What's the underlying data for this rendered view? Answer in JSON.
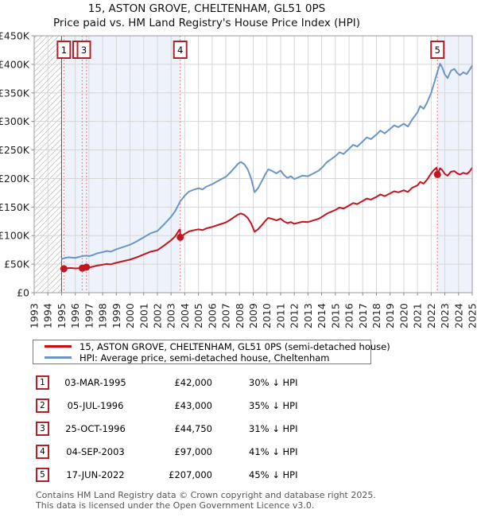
{
  "title_line1": "15, ASTON GROVE, CHELTENHAM, GL51 0PS",
  "title_line2": "Price paid vs. HM Land Registry's House Price Index (HPI)",
  "legend": [
    {
      "label": "15, ASTON GROVE, CHELTENHAM, GL51 0PS (semi-detached house)",
      "color": "#cc0a14"
    },
    {
      "label": "HPI: Average price, semi-detached house, Cheltenham",
      "color": "#6b95c8"
    }
  ],
  "colors": {
    "property_line": "#c41420",
    "hpi_line": "#6b95c8",
    "sale_dot": "#c41420",
    "sale_dotted_line": "#ee6e6e",
    "marker_box_border": "#b22028",
    "shaded_region": "#eef2fa",
    "grid": "#d6d6d6",
    "plot_border": "#9a9a9a",
    "hatch_line": "#c6c6c6",
    "hpi_start_line": "#555555",
    "tick": "#888888",
    "axis_text": "#222222"
  },
  "chart_data": {
    "type": "line",
    "title": "15, ASTON GROVE, CHELTENHAM, GL51 0PS — Price paid vs. HM Land Registry's House Price Index (HPI)",
    "xlabel": "",
    "ylabel": "",
    "x_range": [
      1993,
      2025
    ],
    "y_range": [
      0,
      450000
    ],
    "y_ticks": [
      {
        "value": 0,
        "label": "£0"
      },
      {
        "value": 50000,
        "label": "£50K"
      },
      {
        "value": 100000,
        "label": "£100K"
      },
      {
        "value": 150000,
        "label": "£150K"
      },
      {
        "value": 200000,
        "label": "£200K"
      },
      {
        "value": 250000,
        "label": "£250K"
      },
      {
        "value": 300000,
        "label": "£300K"
      },
      {
        "value": 350000,
        "label": "£350K"
      },
      {
        "value": 400000,
        "label": "£400K"
      },
      {
        "value": 450000,
        "label": "£450K"
      }
    ],
    "x_ticks": [
      1993,
      1994,
      1995,
      1996,
      1997,
      1998,
      1999,
      2000,
      2001,
      2002,
      2003,
      2004,
      2005,
      2006,
      2007,
      2008,
      2009,
      2010,
      2011,
      2012,
      2013,
      2014,
      2015,
      2016,
      2017,
      2018,
      2019,
      2020,
      2021,
      2022,
      2023,
      2024,
      2025
    ],
    "grid": true,
    "legend_position": "below",
    "hatch_region": {
      "from": 1993,
      "to": 1995.0,
      "meaning": "no HPI data before 1995"
    },
    "shaded_regions": [
      {
        "from": 1995.17,
        "to": 2003.67
      },
      {
        "from": 2022.46,
        "to": 2025
      }
    ],
    "series": [
      {
        "name": "HPI: Average price, semi-detached house, Cheltenham",
        "color": "#6b95c8",
        "points": [
          [
            1995.0,
            59000
          ],
          [
            1995.25,
            61000
          ],
          [
            1995.5,
            62000
          ],
          [
            1995.75,
            61500
          ],
          [
            1996.0,
            61000
          ],
          [
            1996.25,
            62500
          ],
          [
            1996.5,
            64000
          ],
          [
            1996.81,
            65000
          ],
          [
            1997.0,
            64000
          ],
          [
            1997.3,
            66000
          ],
          [
            1997.6,
            69000
          ],
          [
            1998.0,
            71000
          ],
          [
            1998.3,
            73000
          ],
          [
            1998.6,
            72000
          ],
          [
            1999.0,
            76000
          ],
          [
            1999.5,
            80000
          ],
          [
            2000.0,
            84000
          ],
          [
            2000.5,
            90000
          ],
          [
            2001.0,
            97000
          ],
          [
            2001.5,
            104000
          ],
          [
            2002.0,
            108000
          ],
          [
            2002.5,
            120000
          ],
          [
            2003.0,
            133000
          ],
          [
            2003.3,
            143000
          ],
          [
            2003.67,
            160000
          ],
          [
            2004.0,
            170000
          ],
          [
            2004.3,
            177000
          ],
          [
            2004.6,
            180000
          ],
          [
            2005.0,
            183000
          ],
          [
            2005.3,
            181000
          ],
          [
            2005.6,
            186000
          ],
          [
            2006.0,
            190000
          ],
          [
            2006.3,
            194000
          ],
          [
            2006.6,
            198000
          ],
          [
            2007.0,
            203000
          ],
          [
            2007.3,
            210000
          ],
          [
            2007.6,
            218000
          ],
          [
            2007.9,
            226000
          ],
          [
            2008.1,
            229000
          ],
          [
            2008.35,
            225000
          ],
          [
            2008.6,
            216000
          ],
          [
            2008.85,
            200000
          ],
          [
            2009.1,
            176000
          ],
          [
            2009.35,
            183000
          ],
          [
            2009.6,
            194000
          ],
          [
            2009.85,
            206000
          ],
          [
            2010.1,
            216000
          ],
          [
            2010.4,
            213000
          ],
          [
            2010.7,
            209000
          ],
          [
            2011.0,
            214000
          ],
          [
            2011.25,
            206000
          ],
          [
            2011.5,
            201000
          ],
          [
            2011.75,
            204000
          ],
          [
            2012.0,
            199000
          ],
          [
            2012.3,
            202000
          ],
          [
            2012.6,
            205000
          ],
          [
            2013.0,
            204000
          ],
          [
            2013.4,
            209000
          ],
          [
            2013.8,
            214000
          ],
          [
            2014.1,
            221000
          ],
          [
            2014.4,
            229000
          ],
          [
            2014.7,
            234000
          ],
          [
            2015.0,
            239000
          ],
          [
            2015.3,
            246000
          ],
          [
            2015.6,
            243000
          ],
          [
            2016.0,
            252000
          ],
          [
            2016.3,
            259000
          ],
          [
            2016.6,
            256000
          ],
          [
            2017.0,
            265000
          ],
          [
            2017.3,
            272000
          ],
          [
            2017.6,
            269000
          ],
          [
            2018.0,
            277000
          ],
          [
            2018.3,
            284000
          ],
          [
            2018.6,
            279000
          ],
          [
            2019.0,
            287000
          ],
          [
            2019.3,
            293000
          ],
          [
            2019.6,
            290000
          ],
          [
            2020.0,
            296000
          ],
          [
            2020.3,
            291000
          ],
          [
            2020.6,
            303000
          ],
          [
            2021.0,
            316000
          ],
          [
            2021.2,
            327000
          ],
          [
            2021.45,
            322000
          ],
          [
            2021.7,
            333000
          ],
          [
            2022.0,
            350000
          ],
          [
            2022.2,
            366000
          ],
          [
            2022.46,
            387000
          ],
          [
            2022.65,
            401000
          ],
          [
            2022.8,
            395000
          ],
          [
            2023.0,
            382000
          ],
          [
            2023.2,
            376000
          ],
          [
            2023.45,
            389000
          ],
          [
            2023.7,
            392000
          ],
          [
            2023.9,
            385000
          ],
          [
            2024.1,
            381000
          ],
          [
            2024.35,
            386000
          ],
          [
            2024.6,
            383000
          ],
          [
            2024.8,
            390000
          ],
          [
            2025.0,
            398000
          ]
        ]
      },
      {
        "name": "15, ASTON GROVE, CHELTENHAM, GL51 0PS (semi-detached house)",
        "color": "#c41420",
        "points": [
          [
            1995.17,
            42000
          ],
          [
            1995.4,
            42800
          ],
          [
            1995.6,
            43400
          ],
          [
            1995.8,
            43000
          ],
          [
            1996.0,
            42500
          ],
          [
            1996.25,
            42900
          ],
          [
            1996.51,
            43000
          ],
          [
            1996.82,
            44750
          ],
          [
            1997.0,
            44200
          ],
          [
            1997.3,
            45600
          ],
          [
            1997.6,
            47600
          ],
          [
            1998.0,
            49000
          ],
          [
            1998.3,
            50400
          ],
          [
            1998.6,
            49700
          ],
          [
            1999.0,
            52400
          ],
          [
            1999.5,
            55200
          ],
          [
            2000.0,
            58000
          ],
          [
            2000.5,
            62100
          ],
          [
            2001.0,
            66900
          ],
          [
            2001.5,
            71800
          ],
          [
            2002.0,
            74500
          ],
          [
            2002.5,
            82800
          ],
          [
            2003.0,
            91800
          ],
          [
            2003.3,
            98700
          ],
          [
            2003.6,
            110000
          ],
          [
            2003.66,
            110400
          ],
          [
            2003.67,
            97000
          ],
          [
            2004.0,
            103000
          ],
          [
            2004.3,
            107300
          ],
          [
            2004.6,
            109100
          ],
          [
            2005.0,
            111000
          ],
          [
            2005.3,
            109700
          ],
          [
            2005.6,
            112800
          ],
          [
            2006.0,
            115200
          ],
          [
            2006.3,
            117600
          ],
          [
            2006.6,
            120000
          ],
          [
            2007.0,
            123100
          ],
          [
            2007.3,
            127300
          ],
          [
            2007.6,
            132200
          ],
          [
            2007.9,
            137000
          ],
          [
            2008.1,
            138800
          ],
          [
            2008.35,
            136400
          ],
          [
            2008.6,
            131000
          ],
          [
            2008.85,
            121300
          ],
          [
            2009.1,
            106700
          ],
          [
            2009.35,
            111000
          ],
          [
            2009.6,
            117600
          ],
          [
            2009.85,
            124900
          ],
          [
            2010.1,
            131000
          ],
          [
            2010.4,
            129100
          ],
          [
            2010.7,
            126700
          ],
          [
            2011.0,
            129700
          ],
          [
            2011.25,
            124900
          ],
          [
            2011.5,
            121900
          ],
          [
            2011.75,
            123700
          ],
          [
            2012.0,
            120700
          ],
          [
            2012.3,
            122500
          ],
          [
            2012.6,
            124300
          ],
          [
            2013.0,
            123700
          ],
          [
            2013.4,
            126700
          ],
          [
            2013.8,
            129700
          ],
          [
            2014.1,
            134000
          ],
          [
            2014.4,
            138800
          ],
          [
            2014.7,
            141900
          ],
          [
            2015.0,
            144900
          ],
          [
            2015.3,
            149100
          ],
          [
            2015.6,
            147300
          ],
          [
            2016.0,
            152800
          ],
          [
            2016.3,
            157000
          ],
          [
            2016.6,
            155200
          ],
          [
            2017.0,
            160700
          ],
          [
            2017.3,
            164900
          ],
          [
            2017.6,
            163100
          ],
          [
            2018.0,
            167900
          ],
          [
            2018.3,
            172200
          ],
          [
            2018.6,
            169100
          ],
          [
            2019.0,
            174000
          ],
          [
            2019.3,
            177600
          ],
          [
            2019.6,
            175800
          ],
          [
            2020.0,
            179400
          ],
          [
            2020.3,
            176400
          ],
          [
            2020.6,
            183700
          ],
          [
            2021.0,
            188000
          ],
          [
            2021.2,
            194000
          ],
          [
            2021.45,
            191000
          ],
          [
            2021.7,
            198000
          ],
          [
            2022.0,
            209000
          ],
          [
            2022.2,
            215000
          ],
          [
            2022.4,
            219000
          ],
          [
            2022.46,
            207000
          ],
          [
            2022.65,
            218000
          ],
          [
            2022.8,
            215000
          ],
          [
            2023.0,
            208000
          ],
          [
            2023.2,
            205000
          ],
          [
            2023.45,
            212000
          ],
          [
            2023.7,
            213000
          ],
          [
            2023.9,
            209000
          ],
          [
            2024.1,
            207000
          ],
          [
            2024.35,
            210000
          ],
          [
            2024.6,
            208000
          ],
          [
            2024.8,
            212000
          ],
          [
            2025.0,
            219000
          ]
        ]
      }
    ],
    "sales": [
      {
        "label": "1",
        "date": "03-MAR-1995",
        "price": "£42,000",
        "price_value": 42000,
        "vs_hpi": "30% ↓ HPI",
        "year": 1995.17,
        "box_year": 1995.17
      },
      {
        "label": "2",
        "date": "05-JUL-1996",
        "price": "£43,000",
        "price_value": 43000,
        "vs_hpi": "35% ↓ HPI",
        "year": 1996.51,
        "box_year": 1996.31
      },
      {
        "label": "3",
        "date": "25-OCT-1996",
        "price": "£44,750",
        "price_value": 44750,
        "vs_hpi": "31% ↓ HPI",
        "year": 1996.82,
        "box_year": 1996.63
      },
      {
        "label": "4",
        "date": "04-SEP-2003",
        "price": "£97,000",
        "price_value": 97000,
        "vs_hpi": "41% ↓ HPI",
        "year": 2003.67,
        "box_year": 2003.67
      },
      {
        "label": "5",
        "date": "17-JUN-2022",
        "price": "£207,000",
        "price_value": 207000,
        "vs_hpi": "45% ↓ HPI",
        "year": 2022.46,
        "box_year": 2022.46
      }
    ]
  },
  "footer_line1": "Contains HM Land Registry data © Crown copyright and database right 2025.",
  "footer_line2": "This data is licensed under the Open Government Licence v3.0."
}
